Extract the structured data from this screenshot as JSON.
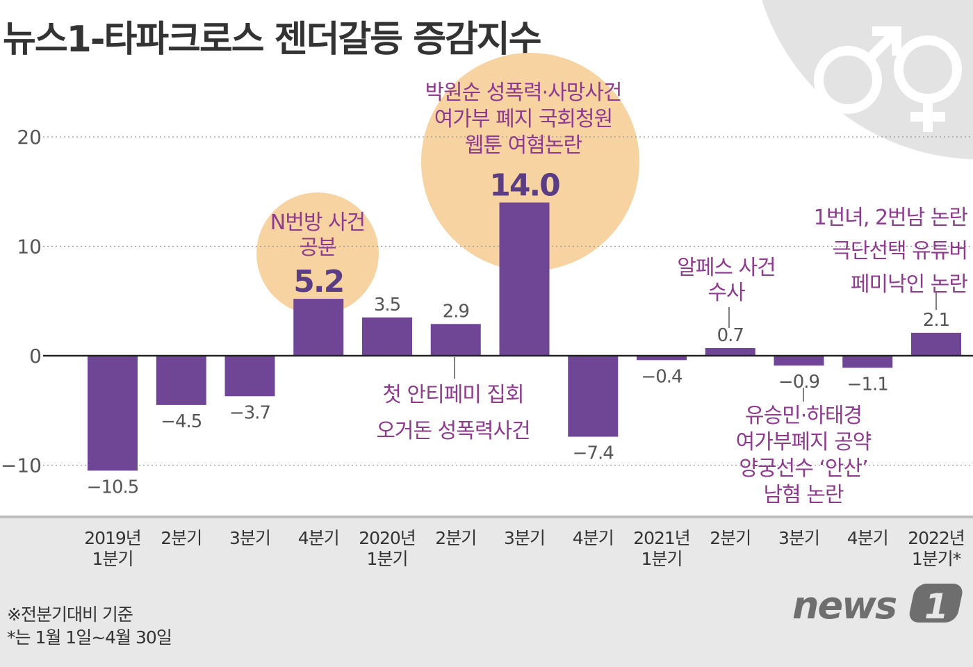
{
  "title": "뉴스1-타파크로스 젠더갈등 증감지수",
  "chart_data": {
    "type": "bar",
    "title": "뉴스1-타파크로스 젠더갈등 증감지수",
    "categories": [
      [
        "2019년",
        "1분기"
      ],
      [
        "2분기"
      ],
      [
        "3분기"
      ],
      [
        "4분기"
      ],
      [
        "2020년",
        "1분기"
      ],
      [
        "2분기"
      ],
      [
        "3분기"
      ],
      [
        "4분기"
      ],
      [
        "2021년",
        "1분기"
      ],
      [
        "2분기"
      ],
      [
        "3분기"
      ],
      [
        "4분기"
      ],
      [
        "2022년",
        "1분기*"
      ]
    ],
    "values": [
      -10.5,
      -4.5,
      -3.7,
      5.2,
      3.5,
      2.9,
      14.0,
      -7.4,
      -0.4,
      0.7,
      -0.9,
      -1.1,
      2.1
    ],
    "value_labels": [
      "−10.5",
      "−4.5",
      "−3.7",
      "5.2",
      "3.5",
      "2.9",
      "14.0",
      "−7.4",
      "−0.4",
      "0.7",
      "−0.9",
      "−1.1",
      "2.1"
    ],
    "highlighted": [
      3,
      6
    ],
    "yticks": [
      20,
      10,
      0,
      -10
    ],
    "ytick_labels": [
      "20",
      "10",
      "0",
      "−10"
    ],
    "ylim": [
      -14,
      27
    ],
    "grid": "horizontal dotted",
    "colors": {
      "bar": "#6f4596",
      "annotation": "#8e3a8e",
      "highlight_circle": "#f6d3a0",
      "highlight_label": "#5a3d85"
    }
  },
  "annotations": [
    {
      "lines": [
        "N번방 사건",
        "공분"
      ]
    },
    {
      "lines": [
        "박원순 성폭력·사망사건",
        "여가부 폐지 국회청원",
        "웹툰 여혐논란"
      ]
    },
    {
      "lines": [
        "첫 안티페미 집회",
        "오거돈 성폭력사건"
      ]
    },
    {
      "lines": [
        "알페스 사건",
        "수사"
      ]
    },
    {
      "lines": [
        "유승민·하태경",
        "여가부폐지 공약",
        "양궁선수 ‘안산’",
        "남혐 논란"
      ]
    },
    {
      "lines": [
        "1번녀, 2번남 논란",
        "극단선택 유튜버",
        "페미낙인 논란"
      ]
    }
  ],
  "notes": [
    "※전분기대비 기준",
    "*는 1월 1일~4월 30일"
  ],
  "logo": "news1",
  "icons": [
    "male-symbol-icon",
    "female-symbol-icon"
  ]
}
